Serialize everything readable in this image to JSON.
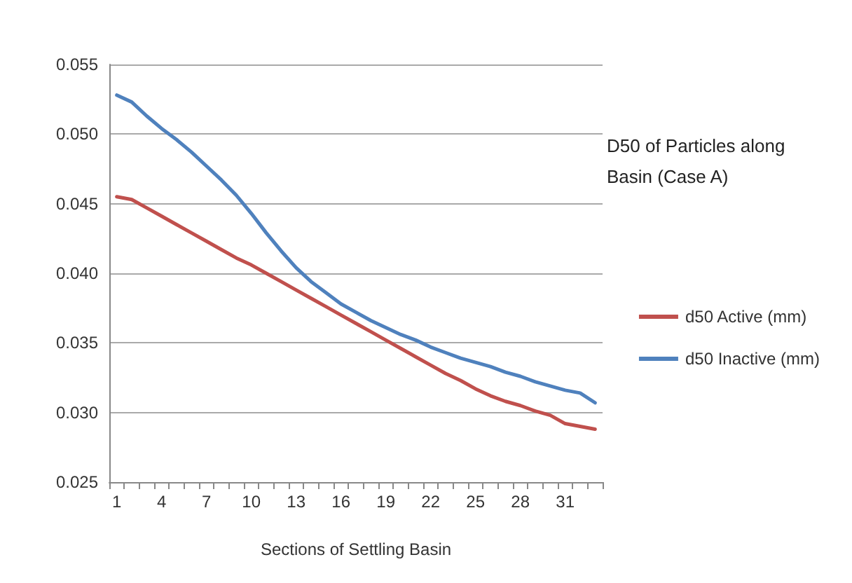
{
  "chart_data": {
    "type": "line",
    "title": "D50 of Particles along Basin (Case A)",
    "xlabel": "Sections of Settling Basin",
    "categories": [
      "1",
      null,
      null,
      "4",
      null,
      null,
      "7",
      null,
      null,
      "10",
      null,
      null,
      "13",
      null,
      null,
      "16",
      null,
      null,
      "19",
      null,
      null,
      "22",
      null,
      null,
      "25",
      null,
      null,
      "28",
      null,
      null,
      "31",
      null,
      null
    ],
    "series": [
      {
        "name": "d50 Active (mm)",
        "color": "#c0504d",
        "values": [
          0.0455,
          0.0453,
          0.0447,
          0.0441,
          0.0435,
          0.0429,
          0.0423,
          0.0417,
          0.0411,
          0.0406,
          0.04,
          0.0394,
          0.0388,
          0.0382,
          0.0376,
          0.037,
          0.0364,
          0.0358,
          0.0352,
          0.0346,
          0.034,
          0.0334,
          0.0328,
          0.0323,
          0.0317,
          0.0312,
          0.0308,
          0.0305,
          0.0301,
          0.0298,
          0.0292,
          0.029,
          0.0288
        ]
      },
      {
        "name": "d50 Inactive (mm)",
        "color": "#4f81bd",
        "values": [
          0.0528,
          0.0523,
          0.0513,
          0.0504,
          0.0496,
          0.0487,
          0.0477,
          0.0467,
          0.0456,
          0.0443,
          0.0429,
          0.0416,
          0.0404,
          0.0394,
          0.0386,
          0.0378,
          0.0372,
          0.0366,
          0.0361,
          0.0356,
          0.0352,
          0.0347,
          0.0343,
          0.0339,
          0.0336,
          0.0333,
          0.0329,
          0.0326,
          0.0322,
          0.0319,
          0.0316,
          0.0314,
          0.0307
        ]
      }
    ],
    "ylim": [
      0.025,
      0.055
    ],
    "yticks": [
      0.025,
      {
        "value": 0.03,
        "label": "0.030"
      },
      0.035,
      {
        "value": 0.04,
        "label": "0.040"
      },
      0.045,
      {
        "value": 0.05,
        "label": "0.050"
      },
      0.055
    ],
    "grid": "y",
    "legend": "right",
    "marker": "none",
    "line_style": "solid"
  }
}
